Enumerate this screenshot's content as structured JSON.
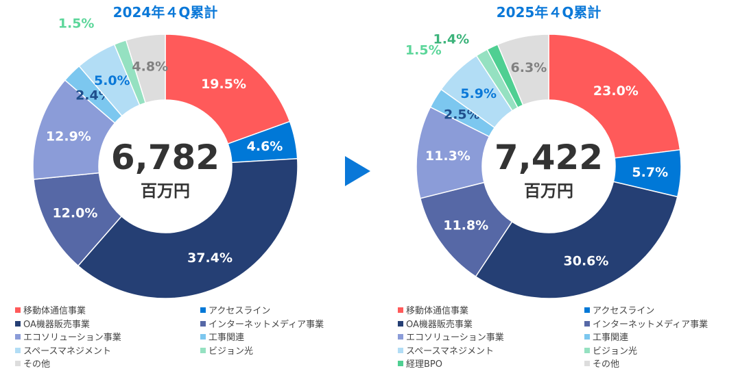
{
  "arrow_color": "#0A78D8",
  "unit": "百万円",
  "chart_data": [
    {
      "type": "pie",
      "title": "2024年４Q累計",
      "total": "6,782",
      "unit": "百万円",
      "slices": [
        {
          "label": "移動体通信事業",
          "value": 19.5,
          "text": "19.5%",
          "color": "#FF5A5A",
          "label_color": "#FFFFFF"
        },
        {
          "label": "アクセスライン",
          "value": 4.6,
          "text": "4.6%",
          "color": "#0078D7",
          "label_color": "#FFFFFF"
        },
        {
          "label": "OA機器販売事業",
          "value": 37.4,
          "text": "37.4%",
          "color": "#253F74",
          "label_color": "#FFFFFF"
        },
        {
          "label": "インターネットメディア事業",
          "value": 12.0,
          "text": "12.0%",
          "color": "#5668A6",
          "label_color": "#FFFFFF"
        },
        {
          "label": "エコソリューション事業",
          "value": 12.9,
          "text": "12.9%",
          "color": "#8B9CD8",
          "label_color": "#FFFFFF"
        },
        {
          "label": "工事関連",
          "value": 2.4,
          "text": "2.4%",
          "color": "#7CC7EF",
          "label_color": "#1F4E8C"
        },
        {
          "label": "スペースマネジメント",
          "value": 5.0,
          "text": "5.0%",
          "color": "#B2DDF5",
          "label_color": "#0A78D8"
        },
        {
          "label": "ビジョン光",
          "value": 1.5,
          "text": "1.5%",
          "color": "#95E1C1",
          "label_color": "#5CD69A"
        },
        {
          "label": "その他",
          "value": 4.8,
          "text": "4.8%",
          "color": "#DDDDDD",
          "label_color": "#808080"
        }
      ]
    },
    {
      "type": "pie",
      "title": "2025年４Q累計",
      "total": "7,422",
      "unit": "百万円",
      "slices": [
        {
          "label": "移動体通信事業",
          "value": 23.0,
          "text": "23.0%",
          "color": "#FF5A5A",
          "label_color": "#FFFFFF"
        },
        {
          "label": "アクセスライン",
          "value": 5.7,
          "text": "5.7%",
          "color": "#0078D7",
          "label_color": "#FFFFFF"
        },
        {
          "label": "OA機器販売事業",
          "value": 30.6,
          "text": "30.6%",
          "color": "#253F74",
          "label_color": "#FFFFFF"
        },
        {
          "label": "インターネットメディア事業",
          "value": 11.8,
          "text": "11.8%",
          "color": "#5668A6",
          "label_color": "#FFFFFF"
        },
        {
          "label": "エコソリューション事業",
          "value": 11.3,
          "text": "11.3%",
          "color": "#8B9CD8",
          "label_color": "#FFFFFF"
        },
        {
          "label": "工事関連",
          "value": 2.5,
          "text": "2.5%",
          "color": "#7CC7EF",
          "label_color": "#1F4E8C"
        },
        {
          "label": "スペースマネジメント",
          "value": 5.9,
          "text": "5.9%",
          "color": "#B2DDF5",
          "label_color": "#0A78D8"
        },
        {
          "label": "ビジョン光",
          "value": 1.5,
          "text": "1.5%",
          "color": "#95E1C1",
          "label_color": "#5CD69A"
        },
        {
          "label": "経理BPO",
          "value": 1.4,
          "text": "1.4%",
          "color": "#4FCF92",
          "label_color": "#3BB37A"
        },
        {
          "label": "その他",
          "value": 6.3,
          "text": "6.3%",
          "color": "#DDDDDD",
          "label_color": "#808080"
        }
      ]
    }
  ]
}
